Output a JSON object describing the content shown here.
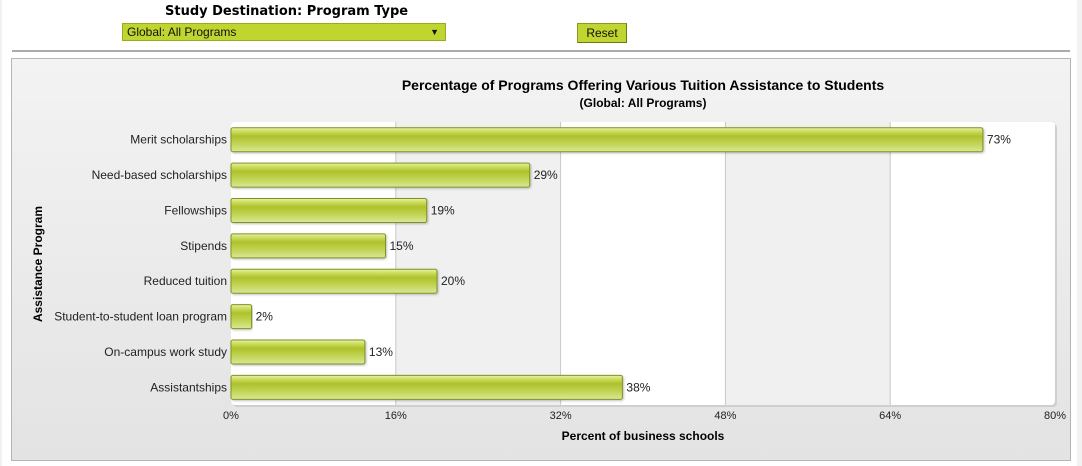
{
  "filter": {
    "label": "Study Destination: Program Type",
    "selected": "Global: All Programs",
    "dropdown_icon": "triangle-down-icon",
    "reset_label": "Reset"
  },
  "colors": {
    "accent": "#c0d52f",
    "bar_fill": "#b4c934",
    "bar_border": "#7f9420"
  },
  "chart_data": {
    "type": "bar",
    "orientation": "horizontal",
    "title": "Percentage of Programs Offering Various Tuition Assistance to Students",
    "subtitle": "(Global: All Programs)",
    "xlabel": "Percent of business schools",
    "ylabel": "Assistance Program",
    "categories": [
      "Merit scholarships",
      "Need-based scholarships",
      "Fellowships",
      "Stipends",
      "Reduced tuition",
      "Student-to-student loan program",
      "On-campus work study",
      "Assistantships"
    ],
    "values": [
      73,
      29,
      19,
      15,
      20,
      2,
      13,
      38
    ],
    "value_labels": [
      "73%",
      "29%",
      "19%",
      "15%",
      "20%",
      "2%",
      "13%",
      "38%"
    ],
    "xlim": [
      0,
      80
    ],
    "xticks": [
      0,
      16,
      32,
      48,
      64,
      80
    ],
    "xtick_labels": [
      "0%",
      "16%",
      "32%",
      "48%",
      "64%",
      "80%"
    ],
    "grid": true,
    "legend": "none"
  }
}
